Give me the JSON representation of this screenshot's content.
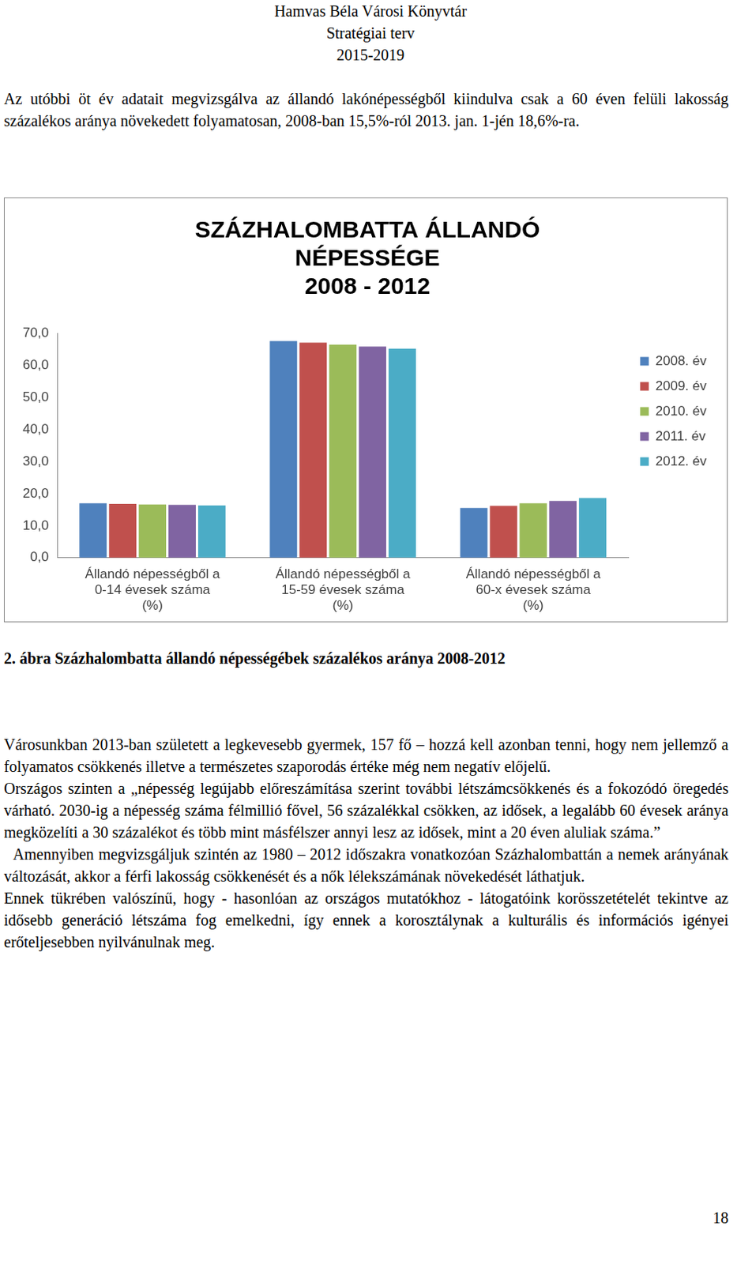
{
  "header": [
    "Hamvas Béla Városi Könyvtár",
    "Stratégiai terv",
    "2015-2019"
  ],
  "intro": "Az utóbbi öt év adatait megvizsgálva az állandó lakónépességből kiindulva csak a 60 éven felüli lakosság százalékos aránya növekedett folyamatosan, 2008-ban 15,5%-ról 2013. jan. 1-jén 18,6%-ra.",
  "chart_data": {
    "type": "bar",
    "title": [
      "SZÁZHALOMBATTA ÁLLANDÓ",
      "NÉPESSÉGE",
      "2008 - 2012"
    ],
    "categories": [
      [
        "Állandó népességből a",
        "0-14 évesek száma",
        "(%)"
      ],
      [
        "Állandó népességből a",
        "15-59 évesek száma",
        "(%)"
      ],
      [
        "Állandó népességből a",
        "60-x évesek száma",
        "(%)"
      ]
    ],
    "series": [
      {
        "name": "2008. év",
        "color": "#4f81bd",
        "values": [
          17.0,
          67.5,
          15.5
        ]
      },
      {
        "name": "2009. év",
        "color": "#c0504d",
        "values": [
          16.8,
          67.0,
          16.2
        ]
      },
      {
        "name": "2010. év",
        "color": "#9bbb59",
        "values": [
          16.6,
          66.4,
          17.0
        ]
      },
      {
        "name": "2011. év",
        "color": "#8064a2",
        "values": [
          16.5,
          65.8,
          17.7
        ]
      },
      {
        "name": "2012. év",
        "color": "#4bacc6",
        "values": [
          16.3,
          65.1,
          18.6
        ]
      }
    ],
    "ylim": [
      0,
      70
    ],
    "yticks": [
      {
        "value": 0,
        "label": "0,0"
      },
      {
        "value": 10,
        "label": "10,0"
      },
      {
        "value": 20,
        "label": "20,0"
      },
      {
        "value": 30,
        "label": "30,0"
      },
      {
        "value": 40,
        "label": "40,0"
      },
      {
        "value": 50,
        "label": "50,0"
      },
      {
        "value": 60,
        "label": "60,0"
      },
      {
        "value": 70,
        "label": "70,0"
      }
    ],
    "grid": false,
    "legend": "right"
  },
  "caption": "2. ábra Százhalombatta állandó népességébek százalékos aránya 2008-2012",
  "paragraphs": [
    "Városunkban 2013-ban született a legkevesebb gyermek, 157 fő – hozzá kell azonban tenni, hogy nem jellemző a folyamatos csökkenés illetve a természetes szaporodás értéke még nem negatív előjelű.",
    "Országos szinten a „népesség legújabb előreszámítása szerint további létszámcsökkenés és a fokozódó öregedés várható. 2030-ig a népesség száma félmillió fővel, 56 százalékkal csökken, az idősek, a legalább 60 évesek aránya megközelíti a 30 százalékot és több mint másfélszer annyi lesz az idősek, mint a 20 éven aluliak száma.”",
    "  Amennyiben megvizsgáljuk szintén az 1980 – 2012 időszakra vonatkozóan Százhalombattán a nemek arányának változását, akkor a férfi lakosság csökkenését és a nők lélekszámának növekedését láthatjuk.",
    "Ennek tükrében valószínű, hogy - hasonlóan az országos mutatókhoz - látogatóink korösszetételét tekintve az idősebb generáció létszáma fog emelkedni, így ennek a korosztálynak a kulturális és információs igényei erőteljesebben nyilvánulnak meg."
  ],
  "page_number": "18"
}
